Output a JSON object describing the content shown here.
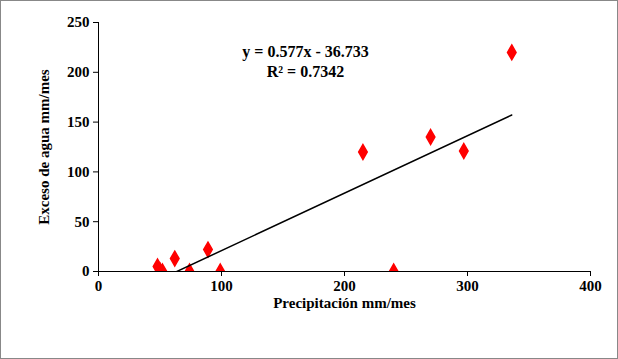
{
  "chart_data": {
    "type": "scatter",
    "xlabel": "Precipitación mm/mes",
    "ylabel": "Exceso de agua mm/mes",
    "x": [
      48,
      50,
      52,
      62,
      74,
      89,
      99,
      215,
      240,
      270,
      297,
      336
    ],
    "values": [
      5,
      1,
      0,
      13,
      0,
      22,
      0,
      120,
      0,
      135,
      121,
      220
    ],
    "color": "#ff0000",
    "marker": "diamond",
    "xlim": [
      0,
      400
    ],
    "xticks": [
      0,
      100,
      200,
      300,
      400
    ],
    "ylim": [
      0,
      250
    ],
    "yticks": [
      0,
      50,
      100,
      150,
      200,
      250
    ],
    "grid": false,
    "trendline": {
      "slope": 0.577,
      "intercept": -36.733,
      "color": "#000000"
    },
    "annotations": [
      "y = 0.577x - 36.733",
      "R² = 0.7342"
    ]
  }
}
